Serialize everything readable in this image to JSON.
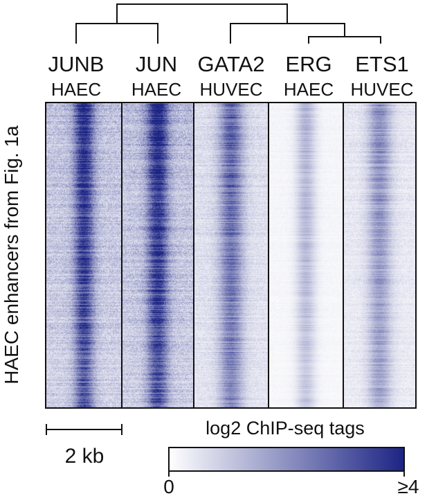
{
  "panels": [
    {
      "factor": "JUNB",
      "cell": "HAEC",
      "peak_intensity": 0.95,
      "peak_width": 0.09,
      "background": 0.48
    },
    {
      "factor": "JUN",
      "cell": "HAEC",
      "peak_intensity": 1.0,
      "peak_width": 0.1,
      "background": 0.52
    },
    {
      "factor": "GATA2",
      "cell": "HUVEC",
      "peak_intensity": 0.72,
      "peak_width": 0.11,
      "background": 0.28
    },
    {
      "factor": "ERG",
      "cell": "HAEC",
      "peak_intensity": 0.38,
      "peak_width": 0.09,
      "background": 0.08
    },
    {
      "factor": "ETS1",
      "cell": "HUVEC",
      "peak_intensity": 0.52,
      "peak_width": 0.11,
      "background": 0.2
    }
  ],
  "dendrogram": {
    "merges": [
      [
        "JUNB",
        "JUN"
      ],
      [
        "ERG",
        "ETS1"
      ],
      [
        "GATA2",
        "ERG+ETS1"
      ],
      [
        "JUNB+JUN",
        "GATA2+ERG+ETS1"
      ]
    ]
  },
  "y_axis_label": "HAEC enhancers from Fig. 1a",
  "scale_bar_label": "2 kb",
  "colorbar": {
    "title": "log2 ChIP-seq tags",
    "min_label": "0",
    "max_label": "≥4",
    "color_low": "#ffffff",
    "color_high": "#1c2484"
  },
  "colors": {
    "heat_high": "#1c2484",
    "heat_low": "#ffffff",
    "line": "#111111"
  }
}
